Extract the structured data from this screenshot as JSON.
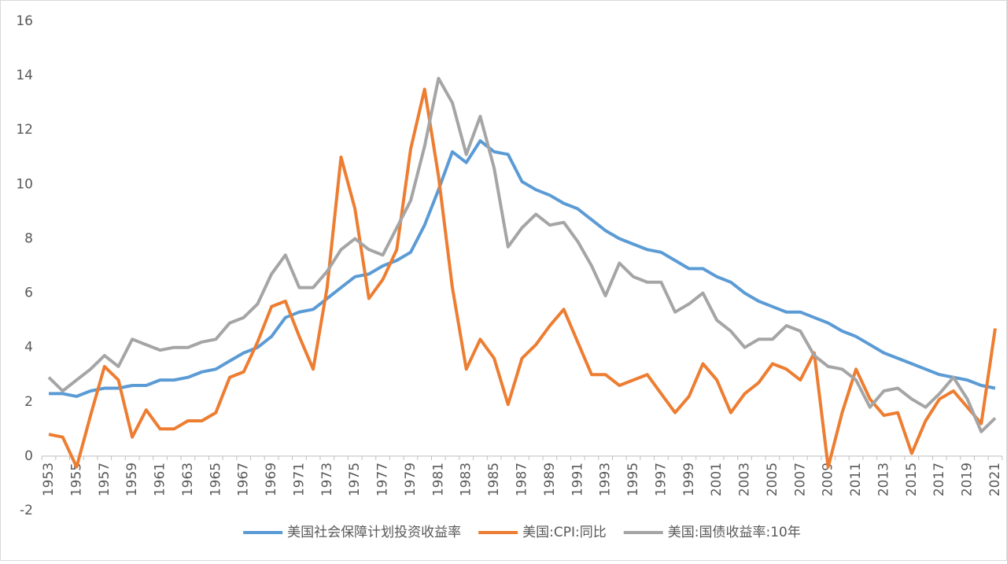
{
  "chart_data": {
    "type": "line",
    "categories": [
      "1953",
      null,
      "1955",
      null,
      "1957",
      null,
      "1959",
      null,
      "1961",
      null,
      "1963",
      null,
      "1965",
      null,
      "1967",
      null,
      "1969",
      null,
      "1971",
      null,
      "1973",
      null,
      "1975",
      null,
      "1977",
      null,
      "1979",
      null,
      "1981",
      null,
      "1983",
      null,
      "1985",
      null,
      "1987",
      null,
      "1989",
      null,
      "1991",
      null,
      "1993",
      null,
      "1995",
      null,
      "1997",
      null,
      "1999",
      null,
      "2001",
      null,
      "2003",
      null,
      "2005",
      null,
      "2007",
      null,
      "2009",
      null,
      "2011",
      null,
      "2013",
      null,
      "2015",
      null,
      "2017",
      null,
      "2019",
      null,
      "2021"
    ],
    "series": [
      {
        "name": "美国社会保障计划投资收益率",
        "color": "#5b9bd5",
        "values": [
          2.3,
          2.3,
          2.2,
          2.4,
          2.5,
          2.5,
          2.6,
          2.6,
          2.8,
          2.8,
          2.9,
          3.1,
          3.2,
          3.5,
          3.8,
          4.0,
          4.4,
          5.1,
          5.3,
          5.4,
          5.8,
          6.2,
          6.6,
          6.7,
          7.0,
          7.2,
          7.5,
          8.5,
          9.8,
          11.2,
          10.8,
          11.6,
          11.2,
          11.1,
          10.1,
          9.8,
          9.6,
          9.3,
          9.1,
          8.7,
          8.3,
          8.0,
          7.8,
          7.6,
          7.5,
          7.2,
          6.9,
          6.9,
          6.6,
          6.4,
          6.0,
          5.7,
          5.5,
          5.3,
          5.3,
          5.1,
          4.9,
          4.6,
          4.4,
          4.1,
          3.8,
          3.6,
          3.4,
          3.2,
          3.0,
          2.9,
          2.8,
          2.6,
          2.5
        ]
      },
      {
        "name": "美国:CPI:同比",
        "color": "#ed7d31",
        "values": [
          0.8,
          0.7,
          -0.4,
          1.5,
          3.3,
          2.8,
          0.7,
          1.7,
          1.0,
          1.0,
          1.3,
          1.3,
          1.6,
          2.9,
          3.1,
          4.2,
          5.5,
          5.7,
          4.4,
          3.2,
          6.2,
          11.0,
          9.1,
          5.8,
          6.5,
          7.6,
          11.3,
          13.5,
          10.3,
          6.2,
          3.2,
          4.3,
          3.6,
          1.9,
          3.6,
          4.1,
          4.8,
          5.4,
          4.2,
          3.0,
          3.0,
          2.6,
          2.8,
          3.0,
          2.3,
          1.6,
          2.2,
          3.4,
          2.8,
          1.6,
          2.3,
          2.7,
          3.4,
          3.2,
          2.8,
          3.8,
          -0.4,
          1.6,
          3.2,
          2.1,
          1.5,
          1.6,
          0.1,
          1.3,
          2.1,
          2.4,
          1.8,
          1.2,
          4.7
        ]
      },
      {
        "name": "美国:国债收益率:10年",
        "color": "#a5a5a5",
        "values": [
          2.9,
          2.4,
          2.8,
          3.2,
          3.7,
          3.3,
          4.3,
          4.1,
          3.9,
          4.0,
          4.0,
          4.2,
          4.3,
          4.9,
          5.1,
          5.6,
          6.7,
          7.4,
          6.2,
          6.2,
          6.8,
          7.6,
          8.0,
          7.6,
          7.4,
          8.4,
          9.4,
          11.4,
          13.9,
          13.0,
          11.1,
          12.5,
          10.6,
          7.7,
          8.4,
          8.9,
          8.5,
          8.6,
          7.9,
          7.0,
          5.9,
          7.1,
          6.6,
          6.4,
          6.4,
          5.3,
          5.6,
          6.0,
          5.0,
          4.6,
          4.0,
          4.3,
          4.3,
          4.8,
          4.6,
          3.7,
          3.3,
          3.2,
          2.8,
          1.8,
          2.4,
          2.5,
          2.1,
          1.8,
          2.3,
          2.9,
          2.1,
          0.9,
          1.4
        ]
      }
    ],
    "ylim": [
      -2,
      16
    ],
    "yticks": [
      -2,
      0,
      2,
      4,
      6,
      8,
      10,
      12,
      14,
      16
    ],
    "grid": false,
    "legend": "bottom"
  }
}
